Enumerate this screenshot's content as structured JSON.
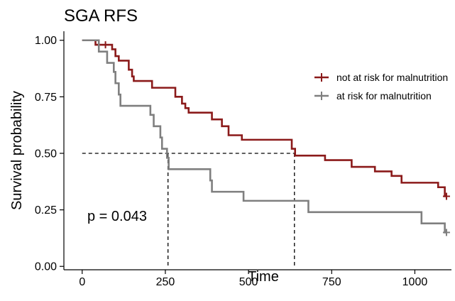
{
  "chart_data": {
    "type": "line",
    "title": "SGA RFS",
    "xlabel": "Time",
    "ylabel": "Survival probability",
    "xlim": [
      -55,
      1110
    ],
    "ylim": [
      -0.015,
      1.04
    ],
    "xticks": [
      0,
      250,
      500,
      750,
      1000
    ],
    "yticks": [
      0.0,
      0.25,
      0.5,
      0.75,
      1.0
    ],
    "xtick_labels": [
      "0",
      "250",
      "500",
      "750",
      "1000"
    ],
    "ytick_labels": [
      "0.00",
      "0.25",
      "0.50",
      "0.75",
      "1.00"
    ],
    "grid": false,
    "legend_position": "right",
    "annotation": "p = 0.043",
    "median_line": {
      "y": 0.5,
      "x_values": [
        258,
        638
      ]
    },
    "series": [
      {
        "name": "not at risk for malnutrition",
        "color": "#8b1a1a",
        "steps": [
          [
            0,
            1.0
          ],
          [
            40,
            0.98
          ],
          [
            90,
            0.96
          ],
          [
            100,
            0.93
          ],
          [
            110,
            0.91
          ],
          [
            140,
            0.87
          ],
          [
            150,
            0.84
          ],
          [
            155,
            0.82
          ],
          [
            210,
            0.79
          ],
          [
            280,
            0.75
          ],
          [
            300,
            0.72
          ],
          [
            310,
            0.7
          ],
          [
            320,
            0.68
          ],
          [
            390,
            0.65
          ],
          [
            420,
            0.62
          ],
          [
            440,
            0.58
          ],
          [
            480,
            0.56
          ],
          [
            630,
            0.52
          ],
          [
            640,
            0.49
          ],
          [
            730,
            0.47
          ],
          [
            810,
            0.44
          ],
          [
            880,
            0.42
          ],
          [
            930,
            0.4
          ],
          [
            960,
            0.37
          ],
          [
            1070,
            0.35
          ],
          [
            1090,
            0.31
          ]
        ],
        "end_x": 1095,
        "censor": [
          [
            70,
            0.98
          ],
          [
            1095,
            0.31
          ]
        ]
      },
      {
        "name": "at risk for malnutrition",
        "color": "#7f7f7f",
        "steps": [
          [
            0,
            1.0
          ],
          [
            50,
            0.95
          ],
          [
            75,
            0.9
          ],
          [
            95,
            0.86
          ],
          [
            100,
            0.81
          ],
          [
            110,
            0.76
          ],
          [
            115,
            0.71
          ],
          [
            205,
            0.67
          ],
          [
            215,
            0.62
          ],
          [
            235,
            0.57
          ],
          [
            240,
            0.52
          ],
          [
            255,
            0.48
          ],
          [
            260,
            0.43
          ],
          [
            385,
            0.38
          ],
          [
            390,
            0.33
          ],
          [
            485,
            0.29
          ],
          [
            680,
            0.24
          ],
          [
            1020,
            0.19
          ],
          [
            1090,
            0.15
          ]
        ],
        "end_x": 1095,
        "censor": [
          [
            1095,
            0.15
          ]
        ]
      }
    ]
  }
}
